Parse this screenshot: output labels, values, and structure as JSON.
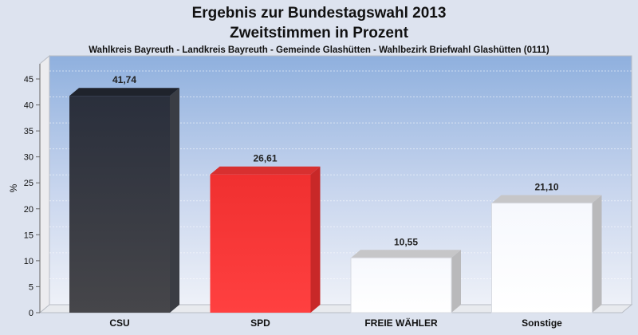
{
  "chart_data": {
    "type": "bar",
    "title": "Ergebnis zur Bundestagswahl 2013",
    "subtitle": "Zweitstimmen in Prozent",
    "caption": "Wahlkreis Bayreuth - Landkreis Bayreuth - Gemeinde Glashütten - Wahlbezirk Briefwahl Glashütten (0111)",
    "ylabel": "%",
    "xlabel": "",
    "ylim": [
      0,
      45
    ],
    "yticks": [
      "0",
      "5",
      "10",
      "15",
      "20",
      "25",
      "30",
      "35",
      "40",
      "45"
    ],
    "categories": [
      "CSU",
      "SPD",
      "FREIE WÄHLER",
      "Sonstige"
    ],
    "values": [
      41.74,
      26.61,
      10.55,
      21.1
    ],
    "value_labels": [
      "41,74",
      "26,61",
      "10,55",
      "21,10"
    ],
    "colors": [
      "#2e3440",
      "#f02e2e",
      "#ffffff",
      "#fbfbff"
    ],
    "grid": true,
    "legend": "none"
  }
}
